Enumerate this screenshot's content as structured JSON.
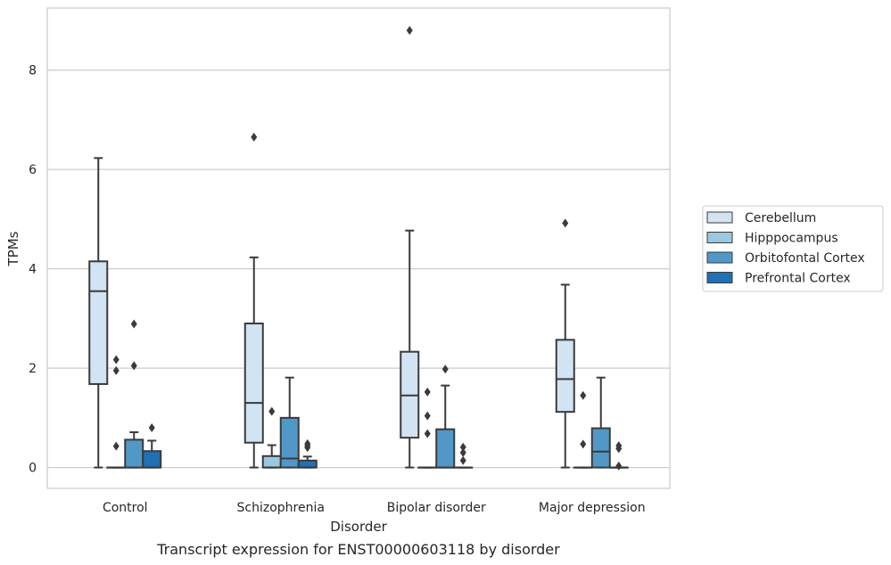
{
  "chart_data": {
    "type": "box",
    "xlabel": "Disorder",
    "ylabel": "TPMs",
    "caption": "Transcript expression for ENST00000603118 by disorder",
    "ylim": [
      -0.42,
      9.25
    ],
    "yticks": [
      "0",
      "2",
      "4",
      "6",
      "8"
    ],
    "ytick_values": [
      0,
      2,
      4,
      6,
      8
    ],
    "grid": "horizontal",
    "legend_position": "right",
    "categories": [
      "Control",
      "Schizophrenia",
      "Bipolar disorder",
      "Major depression"
    ],
    "series": [
      {
        "name": "Cerebellum",
        "color": "#d2e3f3",
        "boxes": [
          {
            "whislo": 0.0,
            "q1": 1.68,
            "med": 3.55,
            "q3": 4.15,
            "whishi": 6.23,
            "fliers": []
          },
          {
            "whislo": 0.0,
            "q1": 0.5,
            "med": 1.3,
            "q3": 2.9,
            "whishi": 4.23,
            "fliers": [
              6.65
            ]
          },
          {
            "whislo": 0.0,
            "q1": 0.6,
            "med": 1.45,
            "q3": 2.33,
            "whishi": 4.77,
            "fliers": [
              8.8
            ]
          },
          {
            "whislo": 0.0,
            "q1": 1.12,
            "med": 1.78,
            "q3": 2.57,
            "whishi": 3.68,
            "fliers": [
              4.92
            ]
          }
        ]
      },
      {
        "name": "Hipppocampus",
        "color": "#9ac8e0",
        "boxes": [
          {
            "whislo": 0.0,
            "q1": 0.0,
            "med": 0.0,
            "q3": 0.0,
            "whishi": 0.0,
            "fliers": [
              0.43,
              1.95,
              2.17
            ]
          },
          {
            "whislo": 0.0,
            "q1": 0.0,
            "med": 0.0,
            "q3": 0.23,
            "whishi": 0.45,
            "fliers": [
              1.13
            ]
          },
          {
            "whislo": 0.0,
            "q1": 0.0,
            "med": 0.0,
            "q3": 0.0,
            "whishi": 0.0,
            "fliers": [
              0.68,
              1.04,
              1.52
            ]
          },
          {
            "whislo": 0.0,
            "q1": 0.0,
            "med": 0.0,
            "q3": 0.0,
            "whishi": 0.0,
            "fliers": [
              0.47,
              1.45
            ]
          }
        ]
      },
      {
        "name": "Orbitofontal Cortex",
        "color": "#5198c8",
        "boxes": [
          {
            "whislo": 0.0,
            "q1": 0.0,
            "med": 0.0,
            "q3": 0.56,
            "whishi": 0.71,
            "fliers": [
              2.05,
              2.89
            ]
          },
          {
            "whislo": 0.0,
            "q1": 0.0,
            "med": 0.18,
            "q3": 1.0,
            "whishi": 1.81,
            "fliers": []
          },
          {
            "whislo": 0.0,
            "q1": 0.0,
            "med": 0.0,
            "q3": 0.77,
            "whishi": 1.65,
            "fliers": [
              1.98
            ]
          },
          {
            "whislo": 0.0,
            "q1": 0.0,
            "med": 0.32,
            "q3": 0.79,
            "whishi": 1.81,
            "fliers": []
          }
        ]
      },
      {
        "name": "Prefrontal Cortex",
        "color": "#2070b4",
        "boxes": [
          {
            "whislo": 0.0,
            "q1": 0.0,
            "med": 0.0,
            "q3": 0.33,
            "whishi": 0.54,
            "fliers": [
              0.8
            ]
          },
          {
            "whislo": 0.0,
            "q1": 0.0,
            "med": 0.0,
            "q3": 0.14,
            "whishi": 0.22,
            "fliers": [
              0.4,
              0.44,
              0.48
            ]
          },
          {
            "whislo": 0.0,
            "q1": 0.0,
            "med": 0.0,
            "q3": 0.0,
            "whishi": 0.0,
            "fliers": [
              0.14,
              0.3,
              0.41
            ]
          },
          {
            "whislo": 0.0,
            "q1": 0.0,
            "med": 0.0,
            "q3": 0.0,
            "whishi": 0.0,
            "fliers": [
              0.03,
              0.38,
              0.44
            ]
          }
        ]
      }
    ]
  }
}
